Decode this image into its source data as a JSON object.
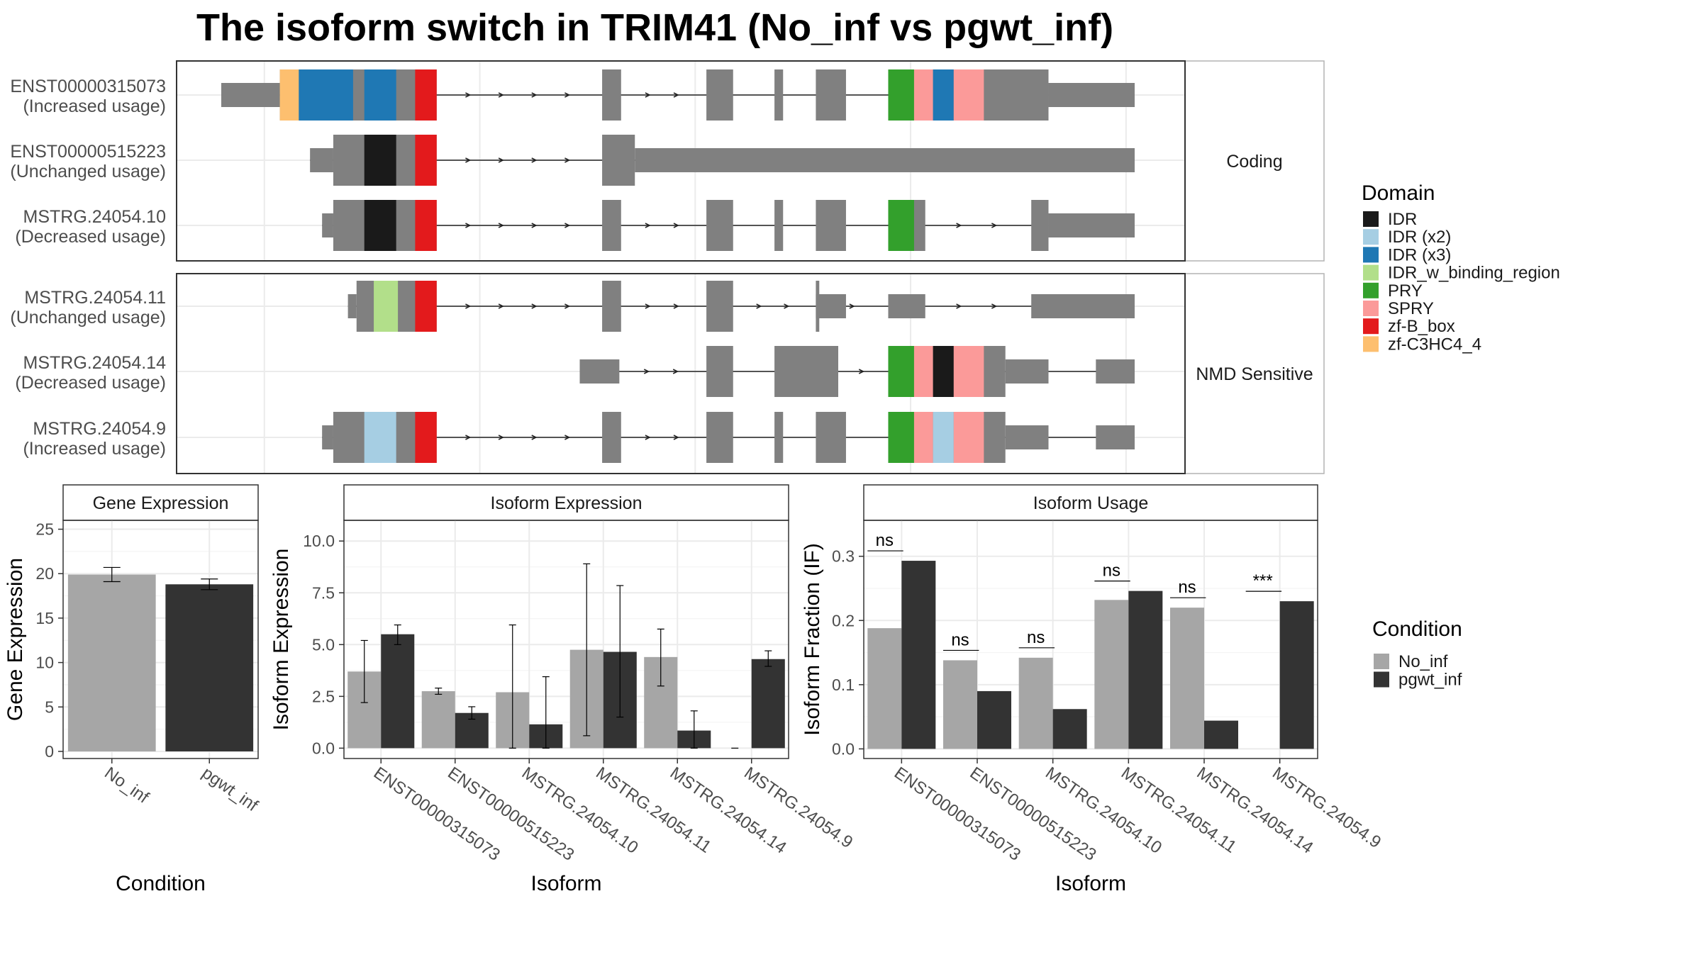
{
  "title": "The isoform switch in TRIM41 (No_inf vs pgwt_inf)",
  "colors": {
    "no_inf": "#a6a6a6",
    "pgwt_inf": "#333333",
    "exon": "#808080",
    "IDR": "#1a1a1a",
    "IDR (x2)": "#a6cee3",
    "IDR (x3)": "#1f78b4",
    "IDR_w_binding_region": "#b2df8a",
    "PRY": "#33a02c",
    "SPRY": "#fb9a99",
    "zf-B_box": "#e31a1c",
    "zf-C3HC4_4": "#fdbf6f"
  },
  "structure": {
    "groups": [
      {
        "label": "Coding",
        "transcripts": [
          {
            "id": "ENST00000315073",
            "usage": "(Increased usage)",
            "utr": [
              [
                0,
                68
              ],
              [
                960,
                1060
              ]
            ],
            "cds": [
              [
                68,
                250
              ],
              [
                442,
                464
              ],
              [
                563,
                594
              ],
              [
                642,
                652
              ],
              [
                690,
                725
              ],
              [
                774,
                960
              ]
            ],
            "domains": [
              {
                "name": "zf-C3HC4_4",
                "range": [
                  68,
                  90
                ]
              },
              {
                "name": "IDR (x3)",
                "range": [
                  90,
                  153
                ]
              },
              {
                "name": "IDR (x3)",
                "range": [
                  166,
                  203
                ]
              },
              {
                "name": "zf-B_box",
                "range": [
                  225,
                  250
                ]
              },
              {
                "name": "PRY",
                "range": [
                  774,
                  804
                ]
              },
              {
                "name": "SPRY",
                "range": [
                  804,
                  826
                ]
              },
              {
                "name": "IDR (x3)",
                "range": [
                  826,
                  850
                ]
              },
              {
                "name": "SPRY",
                "range": [
                  850,
                  885
                ]
              }
            ]
          },
          {
            "id": "ENST00000515223",
            "usage": "(Unchanged usage)",
            "utr": [
              [
                103,
                130
              ],
              [
                480,
                1060
              ]
            ],
            "cds": [
              [
                130,
                250
              ],
              [
                442,
                480
              ]
            ],
            "domains": [
              {
                "name": "IDR",
                "range": [
                  166,
                  203
                ]
              },
              {
                "name": "zf-B_box",
                "range": [
                  225,
                  250
                ]
              }
            ]
          },
          {
            "id": "MSTRG.24054.10",
            "usage": "(Decreased usage)",
            "utr": [
              [
                117,
                130
              ],
              [
                960,
                1060
              ]
            ],
            "cds": [
              [
                130,
                250
              ],
              [
                442,
                464
              ],
              [
                563,
                594
              ],
              [
                642,
                652
              ],
              [
                690,
                725
              ],
              [
                774,
                817
              ],
              [
                940,
                960
              ]
            ],
            "domains": [
              {
                "name": "IDR",
                "range": [
                  166,
                  203
                ]
              },
              {
                "name": "zf-B_box",
                "range": [
                  225,
                  250
                ]
              },
              {
                "name": "PRY",
                "range": [
                  774,
                  804
                ]
              }
            ]
          }
        ]
      },
      {
        "label": "NMD Sensitive",
        "transcripts": [
          {
            "id": "MSTRG.24054.11",
            "usage": "(Unchanged usage)",
            "utr": [
              [
                147,
                157
              ],
              [
                690,
                725
              ],
              [
                774,
                817
              ],
              [
                940,
                1060
              ]
            ],
            "cds": [
              [
                157,
                250
              ],
              [
                442,
                464
              ],
              [
                563,
                594
              ],
              [
                690,
                694
              ]
            ],
            "domains": [
              {
                "name": "IDR_w_binding_region",
                "range": [
                  177,
                  205
                ]
              },
              {
                "name": "zf-B_box",
                "range": [
                  225,
                  250
                ]
              }
            ]
          },
          {
            "id": "MSTRG.24054.14",
            "usage": "(Decreased usage)",
            "utr": [
              [
                416,
                462
              ],
              [
                910,
                960
              ],
              [
                1015,
                1060
              ]
            ],
            "cds": [
              [
                563,
                594
              ],
              [
                642,
                716
              ],
              [
                774,
                910
              ]
            ],
            "domains": [
              {
                "name": "PRY",
                "range": [
                  774,
                  804
                ]
              },
              {
                "name": "SPRY",
                "range": [
                  804,
                  826
                ]
              },
              {
                "name": "IDR",
                "range": [
                  826,
                  850
                ]
              },
              {
                "name": "SPRY",
                "range": [
                  850,
                  885
                ]
              }
            ]
          },
          {
            "id": "MSTRG.24054.9",
            "usage": "(Increased usage)",
            "utr": [
              [
                117,
                130
              ],
              [
                910,
                960
              ],
              [
                1015,
                1060
              ]
            ],
            "cds": [
              [
                130,
                250
              ],
              [
                442,
                464
              ],
              [
                563,
                594
              ],
              [
                642,
                652
              ],
              [
                690,
                725
              ],
              [
                774,
                910
              ]
            ],
            "domains": [
              {
                "name": "IDR (x2)",
                "range": [
                  166,
                  203
                ]
              },
              {
                "name": "zf-B_box",
                "range": [
                  225,
                  250
                ]
              },
              {
                "name": "PRY",
                "range": [
                  774,
                  804
                ]
              },
              {
                "name": "SPRY",
                "range": [
                  804,
                  826
                ]
              },
              {
                "name": "IDR (x2)",
                "range": [
                  826,
                  850
                ]
              },
              {
                "name": "SPRY",
                "range": [
                  850,
                  885
                ]
              }
            ]
          }
        ]
      }
    ]
  },
  "legend_domain": {
    "title": "Domain",
    "items": [
      "IDR",
      "IDR (x2)",
      "IDR (x3)",
      "IDR_w_binding_region",
      "PRY",
      "SPRY",
      "zf-B_box",
      "zf-C3HC4_4"
    ]
  },
  "legend_condition": {
    "title": "Condition",
    "items": [
      "No_inf",
      "pgwt_inf"
    ]
  },
  "chart_data": [
    {
      "type": "bar",
      "title": "Gene Expression",
      "xlabel": "Condition",
      "ylabel": "Gene Expression",
      "categories": [
        "No_inf",
        "pgwt_inf"
      ],
      "values": [
        19.9,
        18.8
      ],
      "errors": [
        [
          19.1,
          20.7
        ],
        [
          18.2,
          19.4
        ]
      ],
      "ylim": [
        -0.8,
        26
      ],
      "yticks": [
        0,
        5,
        10,
        15,
        20,
        25
      ],
      "ytick_labels": [
        "0",
        "5",
        "10",
        "15",
        "20",
        "25"
      ]
    },
    {
      "type": "bar",
      "title": "Isoform Expression",
      "xlabel": "Isoform",
      "ylabel": "Isoform Expression",
      "categories": [
        "ENST00000315073",
        "ENST00000515223",
        "MSTRG.24054.10",
        "MSTRG.24054.11",
        "MSTRG.24054.14",
        "MSTRG.24054.9"
      ],
      "series": [
        {
          "name": "No_inf",
          "values": [
            3.7,
            2.75,
            2.7,
            4.75,
            4.4,
            0.0
          ],
          "errors": [
            [
              2.2,
              5.2
            ],
            [
              2.6,
              2.9
            ],
            [
              0,
              5.95
            ],
            [
              0.6,
              8.9
            ],
            [
              3.0,
              5.75
            ],
            [
              0,
              0
            ]
          ]
        },
        {
          "name": "pgwt_inf",
          "values": [
            5.5,
            1.7,
            1.15,
            4.65,
            0.85,
            4.3
          ],
          "errors": [
            [
              5.0,
              5.95
            ],
            [
              1.4,
              2.0
            ],
            [
              0,
              3.45
            ],
            [
              1.5,
              7.85
            ],
            [
              0,
              1.8
            ],
            [
              3.95,
              4.7
            ]
          ]
        }
      ],
      "ylim": [
        -0.5,
        11.0
      ],
      "yticks": [
        0,
        2.5,
        5,
        7.5,
        10
      ],
      "ytick_labels": [
        "0.0",
        "2.5",
        "5.0",
        "7.5",
        "10.0"
      ]
    },
    {
      "type": "bar",
      "title": "Isoform Usage",
      "xlabel": "Isoform",
      "ylabel": "Isoform Fraction (IF)",
      "categories": [
        "ENST00000315073",
        "ENST00000515223",
        "MSTRG.24054.10",
        "MSTRG.24054.11",
        "MSTRG.24054.14",
        "MSTRG.24054.9"
      ],
      "series": [
        {
          "name": "No_inf",
          "values": [
            0.188,
            0.138,
            0.142,
            0.232,
            0.22,
            0.0
          ]
        },
        {
          "name": "pgwt_inf",
          "values": [
            0.293,
            0.09,
            0.062,
            0.246,
            0.044,
            0.23
          ]
        }
      ],
      "significance": [
        "ns",
        "ns",
        "ns",
        "ns",
        "ns",
        "***"
      ],
      "ylim": [
        -0.015,
        0.356
      ],
      "yticks": [
        0,
        0.1,
        0.2,
        0.3
      ],
      "ytick_labels": [
        "0.0",
        "0.1",
        "0.2",
        "0.3"
      ]
    }
  ]
}
